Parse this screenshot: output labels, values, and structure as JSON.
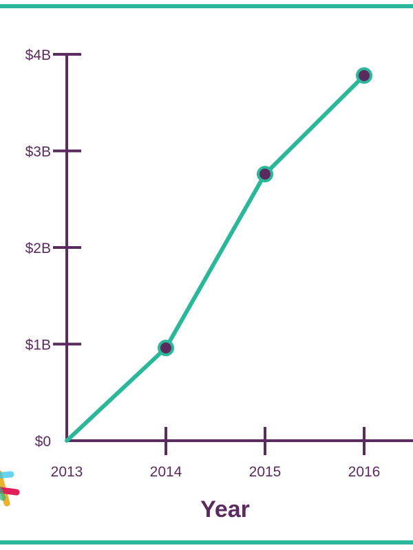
{
  "colors": {
    "frame": "#2bb89a",
    "axis": "#5b2a5e",
    "line": "#2bb89a",
    "marker_fill": "#5b2a5e",
    "marker_stroke": "#2bb89a",
    "logo": [
      "#e01e5a",
      "#ecb22e",
      "#36c5f0",
      "#2eb67d"
    ]
  },
  "icons": {
    "logo": "slack-hash-logo-icon"
  },
  "chart_data": {
    "type": "line",
    "title": "",
    "xlabel": "Year",
    "ylabel": "",
    "categories": [
      "2013",
      "2014",
      "2015",
      "2016"
    ],
    "x": [
      2013,
      2014,
      2015,
      2016
    ],
    "ylim": [
      0,
      4
    ],
    "yticks": [
      0,
      1,
      2,
      3,
      4
    ],
    "ytick_labels": [
      "$0",
      "$1B",
      "$2B",
      "$3B",
      "$4B"
    ],
    "grid": false,
    "legend": "none",
    "series": [
      {
        "values": [
          0,
          0.96,
          2.76,
          3.78
        ],
        "markers": [
          false,
          true,
          true,
          true
        ]
      }
    ]
  }
}
